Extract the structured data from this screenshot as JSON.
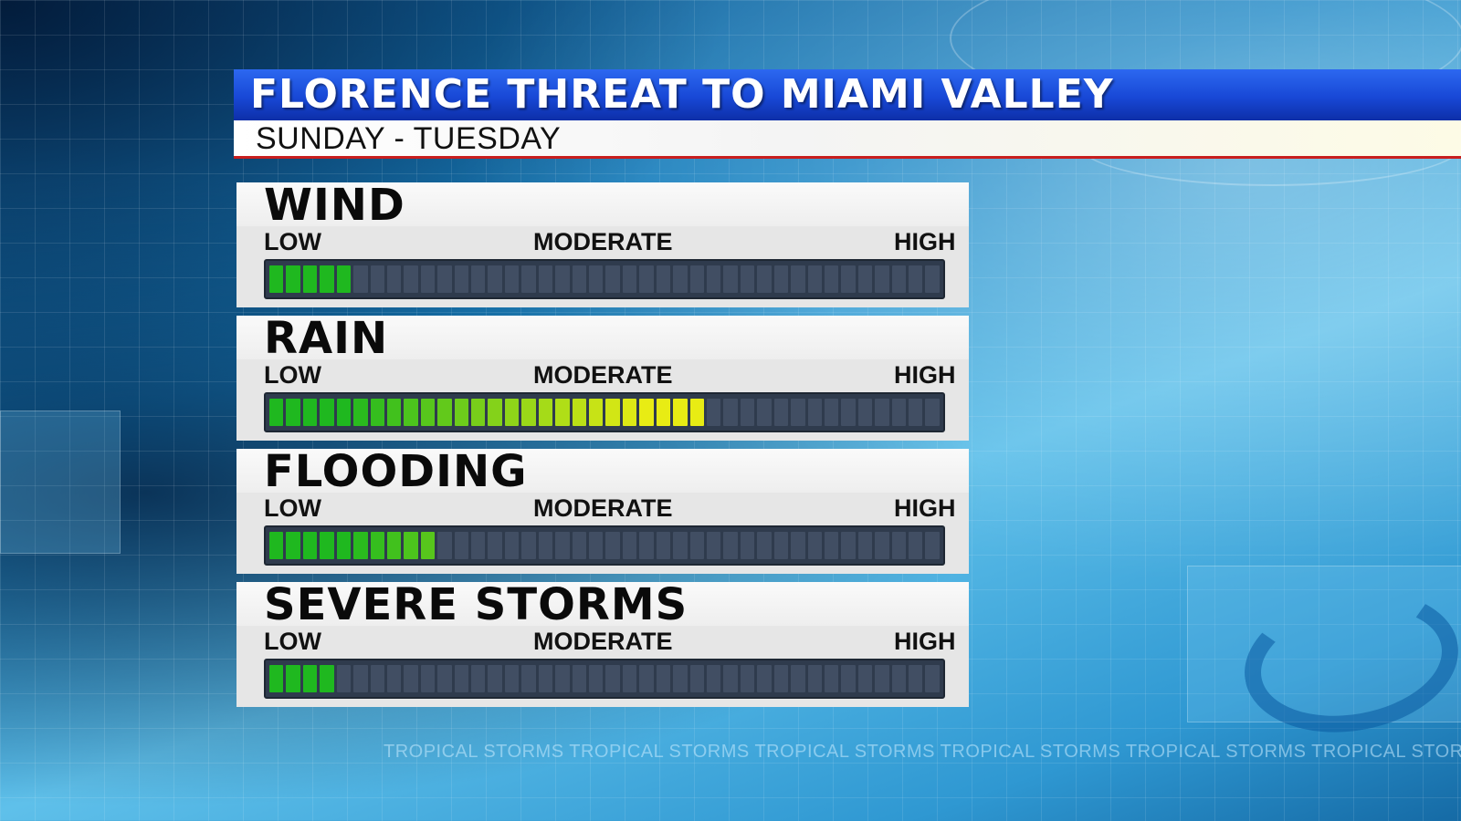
{
  "header": {
    "title": "FLORENCE THREAT TO MIAMI VALLEY",
    "subtitle": "SUNDAY - TUESDAY"
  },
  "scale_labels": {
    "low": "LOW",
    "moderate": "MODERATE",
    "high": "HIGH"
  },
  "segments_total": 40,
  "threats": [
    {
      "name": "WIND",
      "level_fraction": 0.125
    },
    {
      "name": "RAIN",
      "level_fraction": 0.65
    },
    {
      "name": "FLOODING",
      "level_fraction": 0.25
    },
    {
      "name": "SEVERE STORMS",
      "level_fraction": 0.1
    }
  ],
  "colors": {
    "bar_low": "#1fb81f",
    "bar_mid": "#e8ec14",
    "bar_empty": "#414e63",
    "title_bar": "#1848d6",
    "sub_bar_rule": "#c81e1e"
  },
  "ticker": "TROPICAL STORMS TROPICAL STORMS TROPICAL STORMS TROPICAL STORMS TROPICAL STORMS TROPICAL STORMS TRO"
}
